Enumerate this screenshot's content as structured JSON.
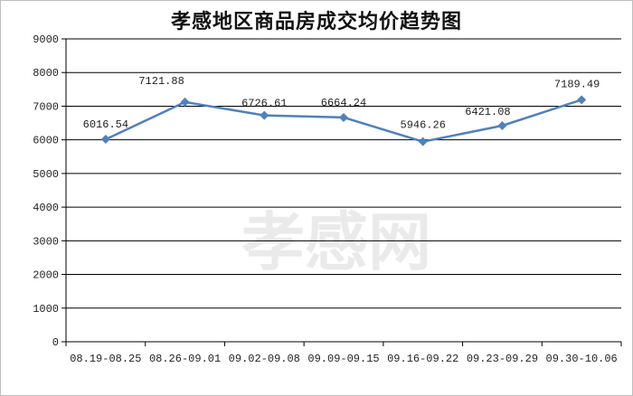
{
  "chart_data": {
    "type": "line",
    "title": "孝感地区商品房成交均价趋势图",
    "xlabel": "",
    "ylabel": "",
    "categories": [
      "08.19-08.25",
      "08.26-09.01",
      "09.02-09.08",
      "09.09-09.15",
      "09.16-09.22",
      "09.23-09.29",
      "09.30-10.06"
    ],
    "series": [
      {
        "values": [
          6016.54,
          7121.88,
          6726.61,
          6664.24,
          5946.26,
          6421.08,
          7189.49
        ]
      }
    ],
    "data_labels": [
      "6016.54",
      "7121.88",
      "6726.61",
      "6664.24",
      "5946.26",
      "6421.08",
      "7189.49"
    ],
    "y_ticks": [
      "0",
      "1000",
      "2000",
      "3000",
      "4000",
      "5000",
      "6000",
      "7000",
      "8000",
      "9000"
    ],
    "ylim": [
      0,
      9000
    ],
    "grid": true,
    "legend": "none",
    "colors": {
      "line": "#4f81bd",
      "grid": "#000000"
    },
    "watermark": "孝感网"
  }
}
